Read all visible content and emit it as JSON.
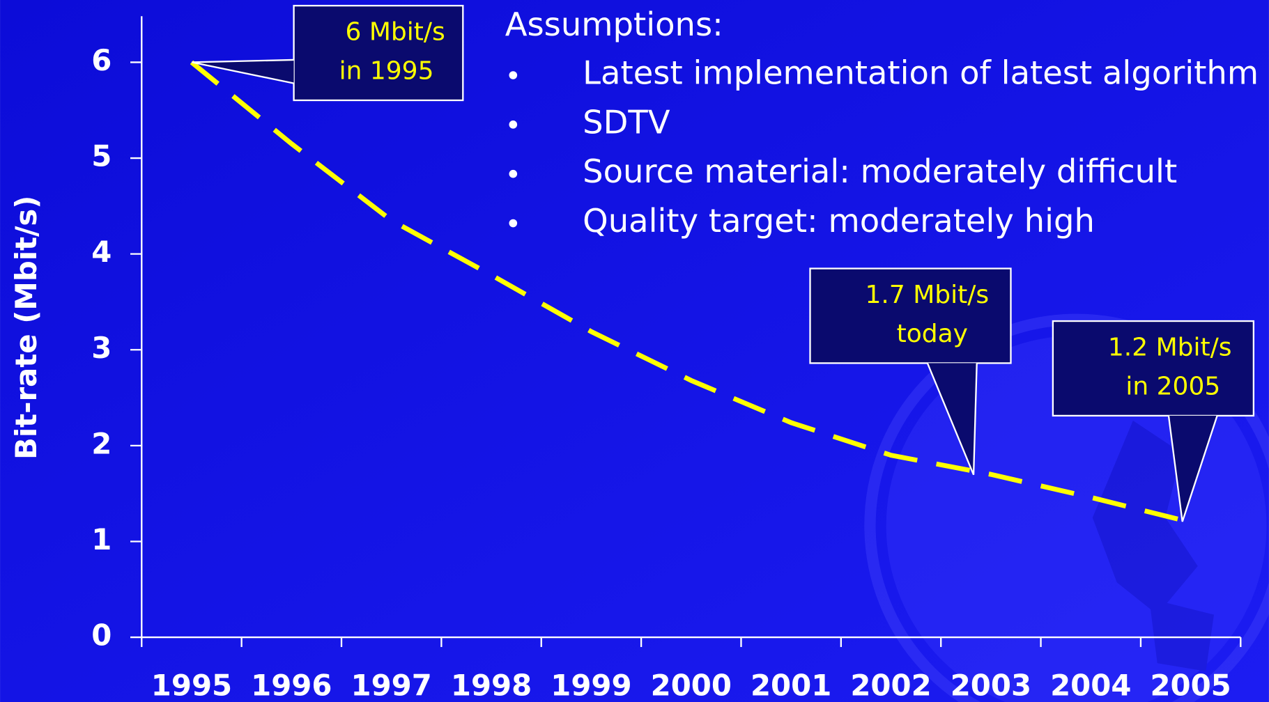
{
  "chart_data": {
    "type": "line",
    "y_axis_label": "Bit-rate (Mbit/s)",
    "categories": [
      "1995",
      "1996",
      "1997",
      "1998",
      "1999",
      "2000",
      "2001",
      "2002",
      "2003",
      "2004",
      "2005"
    ],
    "series": [
      {
        "name": "Bit-rate",
        "color": "#ffff00",
        "values": [
          6,
          5.15,
          4.35,
          3.78,
          3.19,
          2.68,
          2.24,
          1.9,
          1.7,
          1.46,
          1.2
        ]
      }
    ],
    "ylim": [
      0,
      6
    ],
    "yticks": [
      0,
      1,
      2,
      3,
      4,
      5,
      6
    ],
    "annotations": [
      {
        "lines": [
          "6 Mbit/s",
          "in 1995"
        ]
      },
      {
        "lines": [
          "1.7 Mbit/s",
          "today"
        ]
      },
      {
        "lines": [
          "1.2 Mbit/s",
          "in 2005"
        ]
      }
    ],
    "assumptions": {
      "heading": "Assumptions:",
      "items": [
        "Latest implementation of latest algorithm",
        "SDTV",
        "Source material: moderately difficult",
        "Quality target: moderately high"
      ]
    }
  }
}
